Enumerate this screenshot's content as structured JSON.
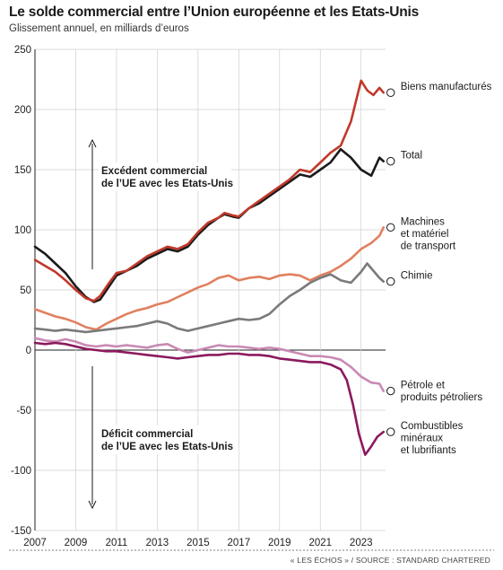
{
  "header": {
    "title": "Le solde commercial entre l’Union européenne et les Etats-Unis",
    "subtitle": "Glissement annuel, en milliards d’euros"
  },
  "source": "« LES ÉCHOS » / SOURCE : STANDARD CHARTERED",
  "annotations": {
    "surplus": [
      "Excédent commercial",
      "de l’UE avec les Etats-Unis"
    ],
    "deficit": [
      "Déficit commercial",
      "de l’UE avec les Etats-Unis"
    ]
  },
  "chart_data": {
    "type": "line",
    "title": "Le solde commercial entre l’Union européenne et les Etats-Unis",
    "subtitle": "Glissement annuel, en milliards d’euros",
    "xlim": [
      2007,
      2024.2
    ],
    "ylim": [
      -150,
      250
    ],
    "xticks": [
      2007,
      2009,
      2011,
      2013,
      2015,
      2017,
      2019,
      2021,
      2023
    ],
    "yticks": [
      -150,
      -100,
      -50,
      0,
      50,
      100,
      150,
      200,
      250
    ],
    "grid": true,
    "series": [
      {
        "key": "total",
        "name": "Total",
        "color": "#1a1a1a",
        "x": [
          2007,
          2007.5,
          2008,
          2008.5,
          2009,
          2009.5,
          2009.9,
          2010.2,
          2010.6,
          2011,
          2011.5,
          2012,
          2012.5,
          2013,
          2013.5,
          2014,
          2014.5,
          2015,
          2015.5,
          2016,
          2016.3,
          2016.7,
          2017,
          2017.5,
          2018,
          2018.5,
          2019,
          2019.5,
          2020,
          2020.5,
          2021,
          2021.5,
          2022,
          2022.5,
          2023,
          2023.5,
          2023.9,
          2024.1
        ],
        "y": [
          86,
          80,
          72,
          64,
          53,
          44,
          40,
          42,
          52,
          62,
          66,
          70,
          76,
          80,
          84,
          82,
          86,
          96,
          104,
          110,
          113,
          111,
          110,
          118,
          122,
          128,
          134,
          140,
          146,
          144,
          150,
          156,
          167,
          160,
          150,
          145,
          160,
          157
        ]
      },
      {
        "key": "biens",
        "name": "Biens manufacturés",
        "color": "#c0392b",
        "x": [
          2007,
          2007.5,
          2008,
          2008.5,
          2009,
          2009.5,
          2009.9,
          2010.2,
          2010.6,
          2011,
          2011.5,
          2012,
          2012.5,
          2013,
          2013.5,
          2014,
          2014.5,
          2015,
          2015.5,
          2016,
          2016.3,
          2016.7,
          2017,
          2017.5,
          2018,
          2018.5,
          2019,
          2019.5,
          2020,
          2020.5,
          2021,
          2021.5,
          2022,
          2022.5,
          2023,
          2023.3,
          2023.6,
          2023.9,
          2024.1
        ],
        "y": [
          75,
          70,
          65,
          58,
          50,
          43,
          41,
          45,
          55,
          64,
          66,
          72,
          78,
          82,
          86,
          84,
          88,
          98,
          106,
          110,
          114,
          112,
          111,
          118,
          124,
          130,
          136,
          142,
          150,
          148,
          156,
          164,
          170,
          190,
          224,
          216,
          212,
          218,
          214
        ]
      },
      {
        "key": "machines",
        "name": "Machines et matériel de transport",
        "color": "#e0805f",
        "x": [
          2007,
          2007.5,
          2008,
          2008.5,
          2009,
          2009.5,
          2010,
          2010.5,
          2011,
          2011.5,
          2012,
          2012.5,
          2013,
          2013.5,
          2014,
          2014.5,
          2015,
          2015.5,
          2016,
          2016.5,
          2017,
          2017.5,
          2018,
          2018.5,
          2019,
          2019.5,
          2020,
          2020.5,
          2021,
          2021.5,
          2022,
          2022.5,
          2023,
          2023.5,
          2023.9,
          2024.1
        ],
        "y": [
          34,
          31,
          28,
          26,
          23,
          19,
          17,
          22,
          26,
          30,
          33,
          35,
          38,
          40,
          44,
          48,
          52,
          55,
          60,
          62,
          58,
          60,
          61,
          59,
          62,
          63,
          62,
          58,
          62,
          65,
          70,
          76,
          84,
          89,
          95,
          102
        ]
      },
      {
        "key": "chimie",
        "name": "Chimie",
        "color": "#7a7a7a",
        "x": [
          2007,
          2007.5,
          2008,
          2008.5,
          2009,
          2009.5,
          2010,
          2010.5,
          2011,
          2011.5,
          2012,
          2012.5,
          2013,
          2013.5,
          2014,
          2014.5,
          2015,
          2015.5,
          2016,
          2016.5,
          2017,
          2017.5,
          2018,
          2018.5,
          2019,
          2019.5,
          2020,
          2020.5,
          2021,
          2021.5,
          2022,
          2022.5,
          2023,
          2023.3,
          2023.6,
          2023.9,
          2024.1
        ],
        "y": [
          18,
          17,
          16,
          17,
          16,
          15,
          16,
          17,
          18,
          19,
          20,
          22,
          24,
          22,
          18,
          16,
          18,
          20,
          22,
          24,
          26,
          25,
          26,
          30,
          38,
          45,
          50,
          56,
          60,
          63,
          58,
          56,
          65,
          72,
          66,
          60,
          57
        ]
      },
      {
        "key": "petrole",
        "name": "Pétrole et produits pétroliers",
        "color": "#c98ab4",
        "x": [
          2007,
          2007.5,
          2008,
          2008.5,
          2009,
          2009.5,
          2010,
          2010.5,
          2011,
          2011.5,
          2012,
          2012.5,
          2013,
          2013.5,
          2014,
          2014.5,
          2015,
          2015.5,
          2016,
          2016.5,
          2017,
          2017.5,
          2018,
          2018.5,
          2019,
          2019.5,
          2020,
          2020.5,
          2021,
          2021.5,
          2022,
          2022.5,
          2023,
          2023.5,
          2023.9,
          2024.1
        ],
        "y": [
          10,
          8,
          7,
          9,
          7,
          4,
          3,
          4,
          3,
          4,
          3,
          2,
          4,
          5,
          1,
          -2,
          0,
          2,
          4,
          3,
          3,
          2,
          1,
          2,
          1,
          -1,
          -3,
          -5,
          -5,
          -6,
          -8,
          -14,
          -22,
          -27,
          -28,
          -34
        ]
      },
      {
        "key": "combustibles",
        "name": "Combustibles minéraux et lubrifiants",
        "color": "#8b1a5e",
        "x": [
          2007,
          2007.5,
          2008,
          2008.5,
          2009,
          2009.5,
          2010,
          2010.5,
          2011,
          2011.5,
          2012,
          2012.5,
          2013,
          2013.5,
          2014,
          2014.5,
          2015,
          2015.5,
          2016,
          2016.5,
          2017,
          2017.5,
          2018,
          2018.5,
          2019,
          2019.5,
          2020,
          2020.5,
          2021,
          2021.5,
          2022,
          2022.3,
          2022.6,
          2022.9,
          2023.2,
          2023.5,
          2023.8,
          2024.1
        ],
        "y": [
          6,
          5,
          6,
          5,
          3,
          1,
          0,
          -1,
          -1,
          -2,
          -3,
          -4,
          -5,
          -6,
          -7,
          -6,
          -5,
          -4,
          -4,
          -3,
          -3,
          -4,
          -4,
          -5,
          -7,
          -8,
          -9,
          -10,
          -10,
          -12,
          -16,
          -25,
          -45,
          -70,
          -87,
          -80,
          -72,
          -68
        ]
      }
    ],
    "labels": [
      {
        "series": "biens",
        "lines": [
          "Biens manufacturés"
        ]
      },
      {
        "series": "total",
        "lines": [
          "Total"
        ]
      },
      {
        "series": "machines",
        "lines": [
          "Machines",
          "et matériel",
          "de transport"
        ]
      },
      {
        "series": "chimie",
        "lines": [
          "Chimie"
        ]
      },
      {
        "series": "petrole",
        "lines": [
          "Pétrole et",
          "produits pétroliers"
        ]
      },
      {
        "series": "combustibles",
        "lines": [
          "Combustibles",
          "minéraux",
          "et lubrifiants"
        ]
      }
    ]
  }
}
